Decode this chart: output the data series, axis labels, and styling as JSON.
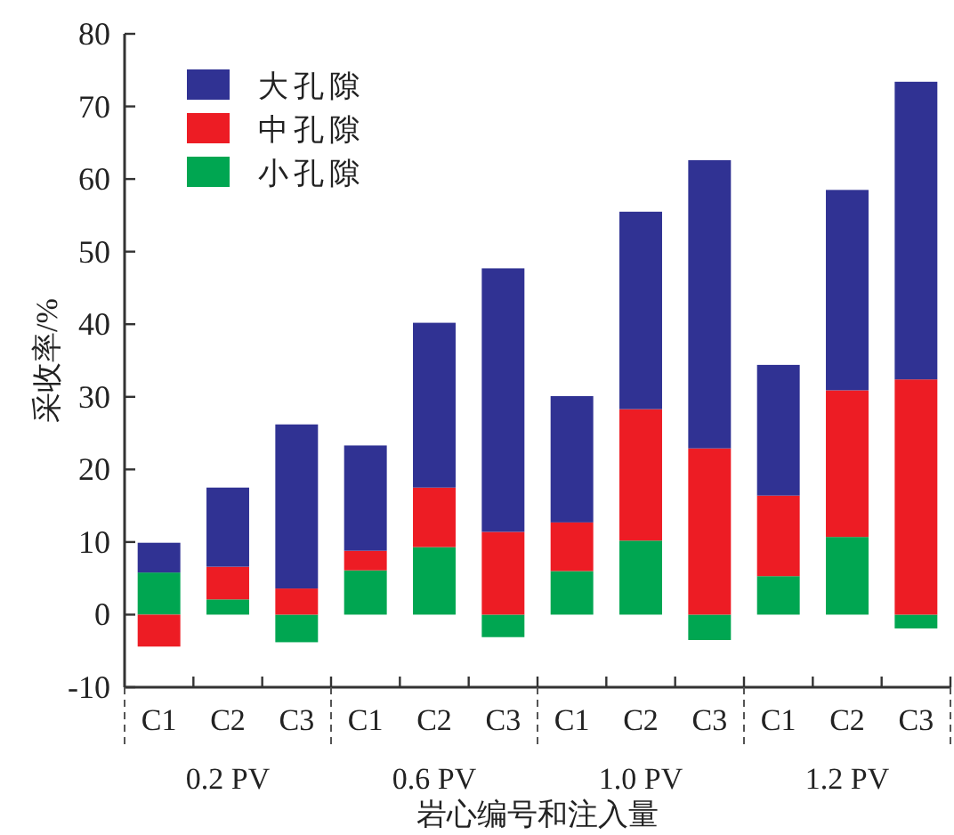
{
  "chart_data": {
    "type": "bar",
    "stacked": true,
    "ylabel": "采收率/%",
    "xlabel": "岩心编号和注入量",
    "categories": [
      "C1",
      "C2",
      "C3",
      "C1",
      "C2",
      "C3",
      "C1",
      "C2",
      "C3",
      "C1",
      "C2",
      "C3"
    ],
    "series": [
      {
        "name": "小孔隙",
        "color": "#00a651",
        "values": [
          5.8,
          2.1,
          -3.8,
          6.1,
          9.3,
          -3.1,
          6.0,
          10.2,
          -3.5,
          5.3,
          10.7,
          -1.9
        ]
      },
      {
        "name": "中孔隙",
        "color": "#ed1c24",
        "values": [
          -4.4,
          4.5,
          3.6,
          2.7,
          8.2,
          11.4,
          6.7,
          18.1,
          22.9,
          11.1,
          20.2,
          32.4
        ]
      },
      {
        "name": "大孔隙",
        "color": "#303293",
        "values": [
          4.1,
          10.9,
          22.6,
          14.5,
          22.7,
          36.3,
          17.4,
          27.2,
          39.7,
          18.0,
          27.6,
          41.0
        ]
      }
    ],
    "annotations": [
      "0.2 PV",
      "0.6 PV",
      "1.0 PV",
      "1.2 PV"
    ],
    "ylim": [
      -10,
      80
    ],
    "yticks": [
      -10,
      0,
      10,
      20,
      30,
      40,
      50,
      60,
      70,
      80
    ],
    "legend": "top left",
    "grid": false
  }
}
